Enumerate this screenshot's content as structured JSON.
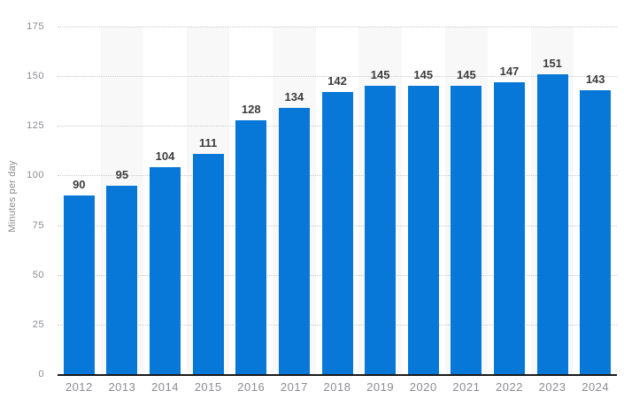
{
  "chart_data": {
    "type": "bar",
    "title": "",
    "xlabel": "",
    "ylabel": "Minutes per day",
    "categories": [
      "2012",
      "2013",
      "2014",
      "2015",
      "2016",
      "2017",
      "2018",
      "2019",
      "2020",
      "2021",
      "2022",
      "2023",
      "2024"
    ],
    "values": [
      90,
      95,
      104,
      111,
      128,
      134,
      142,
      145,
      145,
      145,
      147,
      151,
      143
    ],
    "ylim": [
      0,
      175
    ],
    "yticks": [
      0,
      25,
      50,
      75,
      100,
      125,
      150,
      175
    ],
    "grid": "horizontal-dotted",
    "legend_position": "none",
    "colors": {
      "bar": "#0778d7",
      "column_stripe": "#f8f8f8",
      "gridline": "#c9c9c9",
      "axis_line": "#191919",
      "tick_text": "#8b8b93",
      "value_label_text": "#3c3c3c",
      "background": "#ffffff"
    }
  }
}
